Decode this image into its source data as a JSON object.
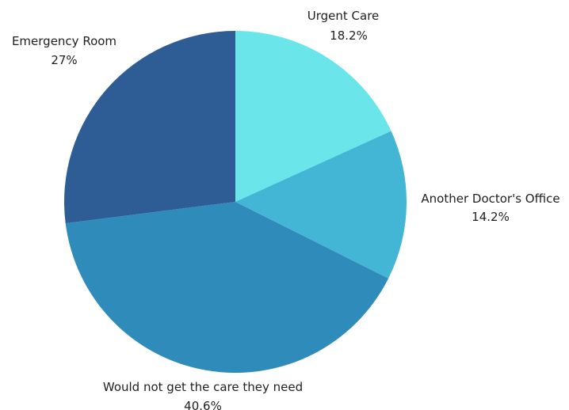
{
  "chart_data": {
    "type": "pie",
    "title": "",
    "start_angle_deg": 0,
    "direction": "clockwise",
    "slices": [
      {
        "label": "Urgent Care",
        "value": 18.2,
        "value_label": "18.2%",
        "color": "#6ae6ea"
      },
      {
        "label": "Another Doctor's Office",
        "value": 14.2,
        "value_label": "14.2%",
        "color": "#43b6d6"
      },
      {
        "label": "Would not get the care they need",
        "value": 40.6,
        "value_label": "40.6%",
        "color": "#2e8bba"
      },
      {
        "label": "Emergency Room",
        "value": 27,
        "value_label": "27%",
        "color": "#2e5d95"
      }
    ]
  }
}
